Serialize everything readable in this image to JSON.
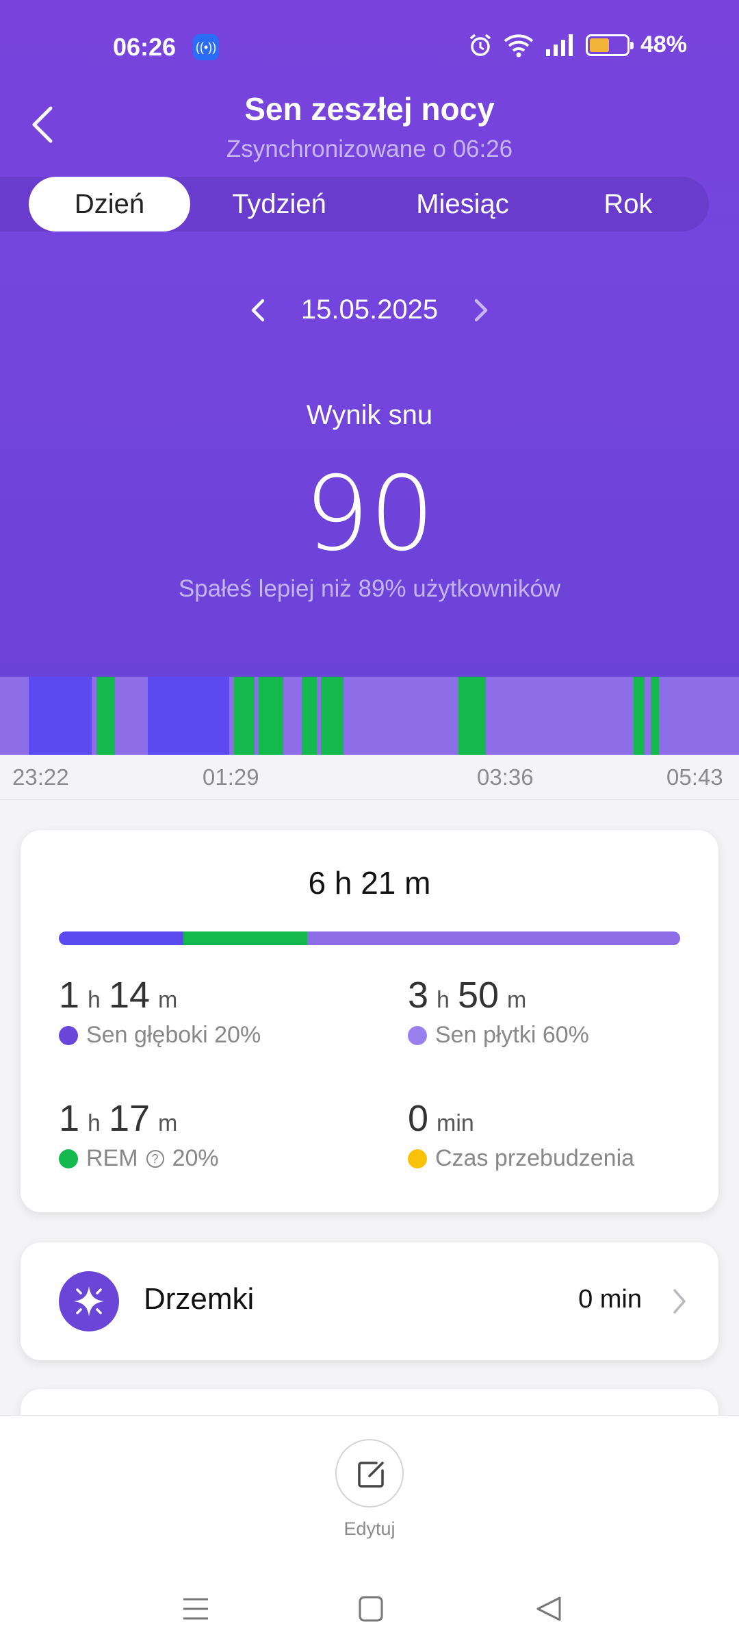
{
  "status_bar": {
    "time": "06:26",
    "battery_percent": "48%",
    "battery_level": 0.48
  },
  "header": {
    "title": "Sen zeszłej nocy",
    "subtitle": "Zsynchronizowane o 06:26"
  },
  "tabs": [
    {
      "label": "Dzień",
      "active": true
    },
    {
      "label": "Tydzień",
      "active": false
    },
    {
      "label": "Miesiąc",
      "active": false
    },
    {
      "label": "Rok",
      "active": false
    }
  ],
  "date": "15.05.2025",
  "score": {
    "label": "Wynik snu",
    "value": "90",
    "description": "Spałeś lepiej niż 89% użytkowników"
  },
  "colors": {
    "deep": "#5b4af0",
    "light": "#8d6ee8",
    "rem": "#13b94d",
    "awake": "#f9c107",
    "accent": "#6b45d8"
  },
  "timeline": {
    "labels": [
      "23:22",
      "01:29",
      "03:36",
      "05:43"
    ]
  },
  "summary": {
    "total": "6 h 21 m",
    "shares": {
      "deep": 0.2,
      "rem": 0.2,
      "light": 0.6
    },
    "deep": {
      "h": "1",
      "m": "14",
      "label": "Sen głęboki 20%"
    },
    "light": {
      "h": "3",
      "m": "50",
      "label": "Sen płytki 60%"
    },
    "rem": {
      "h": "1",
      "m": "17",
      "label": "REM",
      "percent": "20%"
    },
    "awake": {
      "value": "0",
      "unit": "min",
      "label": "Czas przebudzenia"
    },
    "units": {
      "h": "h",
      "m": "m"
    }
  },
  "naps": {
    "label": "Drzemki",
    "value": "0 min"
  },
  "bottom": {
    "edit_label": "Edytuj"
  }
}
